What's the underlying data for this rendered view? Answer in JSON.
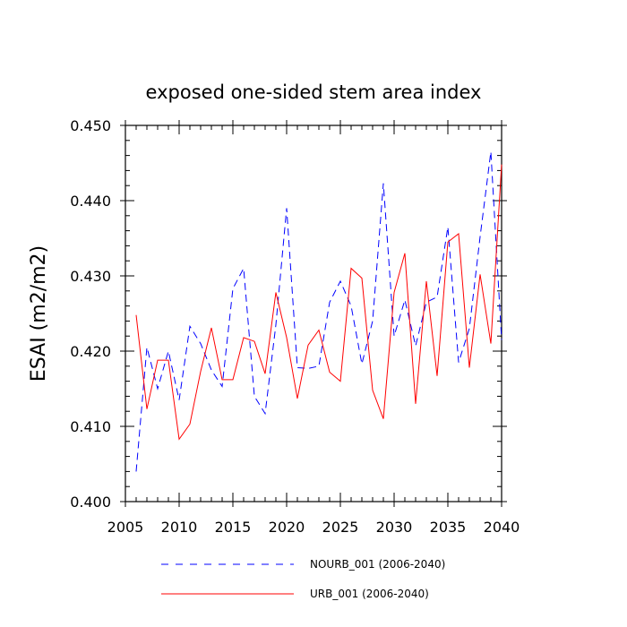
{
  "chart_data": {
    "type": "line",
    "title": "exposed one-sided stem area index",
    "xlabel": "",
    "ylabel": "ESAI  (m2/m2)",
    "xlim": [
      2005,
      2040
    ],
    "ylim": [
      0.4,
      0.45
    ],
    "x_ticks": [
      2005,
      2010,
      2015,
      2020,
      2025,
      2030,
      2035,
      2040
    ],
    "x_tick_labels": [
      "2005",
      "2010",
      "2015",
      "2020",
      "2025",
      "2030",
      "2035",
      "2040"
    ],
    "y_ticks": [
      0.4,
      0.41,
      0.42,
      0.43,
      0.44,
      0.45
    ],
    "y_tick_labels": [
      "0.400",
      "0.410",
      "0.420",
      "0.430",
      "0.440",
      "0.450"
    ],
    "x": [
      2006,
      2007,
      2008,
      2009,
      2010,
      2011,
      2012,
      2013,
      2014,
      2015,
      2016,
      2017,
      2018,
      2019,
      2020,
      2021,
      2022,
      2023,
      2024,
      2025,
      2026,
      2027,
      2028,
      2029,
      2030,
      2031,
      2032,
      2033,
      2034,
      2035,
      2036,
      2037,
      2038,
      2039,
      2040
    ],
    "series": [
      {
        "name": "NOURB_001 (2006-2040)",
        "color": "#0000ff",
        "dash": "dashed",
        "values": [
          0.404,
          0.4205,
          0.415,
          0.42,
          0.4135,
          0.4233,
          0.421,
          0.4175,
          0.4153,
          0.4283,
          0.431,
          0.414,
          0.4117,
          0.4235,
          0.439,
          0.4178,
          0.4177,
          0.418,
          0.4265,
          0.4293,
          0.426,
          0.4183,
          0.424,
          0.4423,
          0.422,
          0.4268,
          0.4207,
          0.4265,
          0.4272,
          0.4365,
          0.4185,
          0.423,
          0.4352,
          0.4465,
          0.4215
        ]
      },
      {
        "name": "URB_001 (2006-2040)",
        "color": "#ff0000",
        "dash": "solid",
        "values": [
          0.4248,
          0.4123,
          0.4188,
          0.4188,
          0.4083,
          0.4103,
          0.4173,
          0.4231,
          0.4162,
          0.4162,
          0.4218,
          0.4213,
          0.417,
          0.4278,
          0.4218,
          0.4137,
          0.4208,
          0.4228,
          0.4172,
          0.416,
          0.431,
          0.4297,
          0.4148,
          0.411,
          0.4278,
          0.433,
          0.413,
          0.4293,
          0.4167,
          0.4345,
          0.4356,
          0.4178,
          0.4302,
          0.421,
          0.4448
        ]
      }
    ],
    "legend_position": "bottom"
  }
}
